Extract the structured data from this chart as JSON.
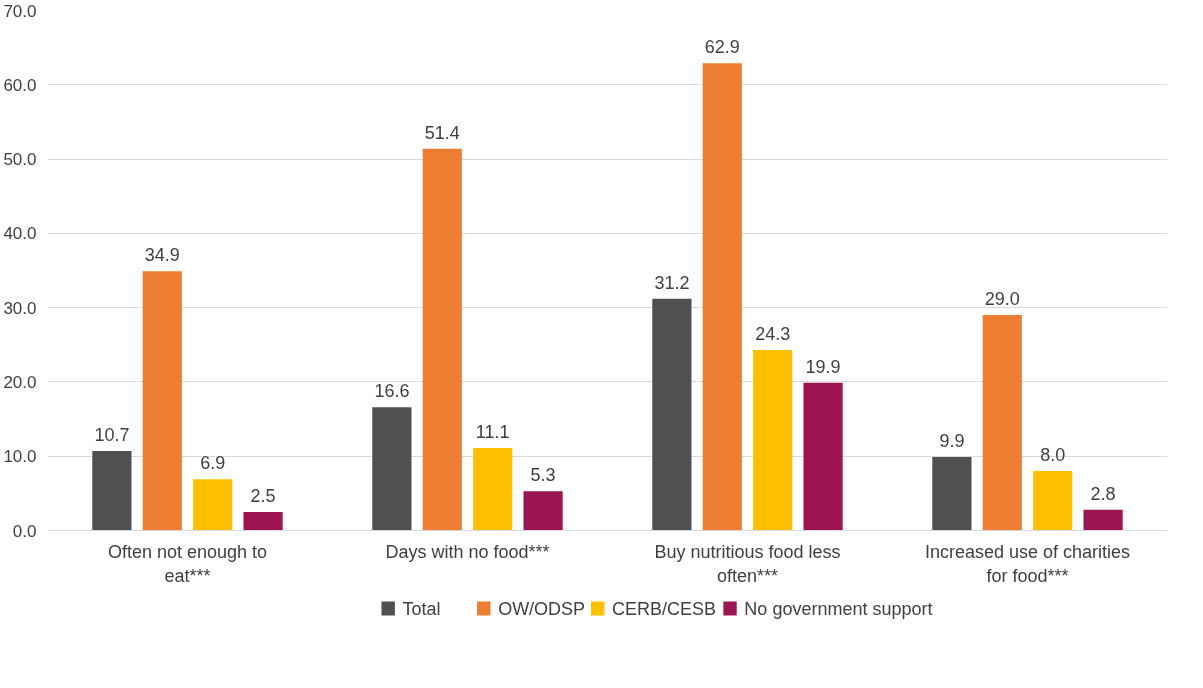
{
  "chart_data": {
    "type": "bar",
    "categories": [
      "Often not enough to\neat***",
      "Days with no food***",
      "Buy nutritious food less\noften***",
      "Increased use of charities\nfor food***"
    ],
    "series": [
      {
        "name": "Total",
        "color": "#505050",
        "values": [
          10.7,
          16.6,
          31.2,
          9.9
        ],
        "value_labels": [
          "10.7",
          "16.6",
          "31.2",
          "9.9"
        ]
      },
      {
        "name": "OW/ODSP",
        "color": "#ed7d31",
        "values": [
          34.9,
          51.4,
          62.9,
          29.0
        ],
        "value_labels": [
          "34.9",
          "51.4",
          "62.9",
          "29.0"
        ]
      },
      {
        "name": "CERB/CESB",
        "color": "#ffc000",
        "values": [
          6.9,
          11.1,
          24.3,
          8.0
        ],
        "value_labels": [
          "6.9",
          "11.1",
          "24.3",
          "8.0"
        ]
      },
      {
        "name": "No government support",
        "color": "#9b1552",
        "values": [
          2.5,
          5.3,
          19.9,
          2.8
        ],
        "value_labels": [
          "2.5",
          "5.3",
          "19.9",
          "2.8"
        ]
      }
    ],
    "ylim": [
      0,
      70
    ],
    "yticks": [
      {
        "value": 0,
        "label": "0.0"
      },
      {
        "value": 10,
        "label": "10.0"
      },
      {
        "value": 20,
        "label": "20.0"
      },
      {
        "value": 30,
        "label": "30.0"
      },
      {
        "value": 40,
        "label": "40.0"
      },
      {
        "value": 50,
        "label": "50.0"
      },
      {
        "value": 60,
        "label": "60.0"
      },
      {
        "value": 70,
        "label": "70.0"
      }
    ],
    "grid": "y",
    "legend": "bottom"
  }
}
